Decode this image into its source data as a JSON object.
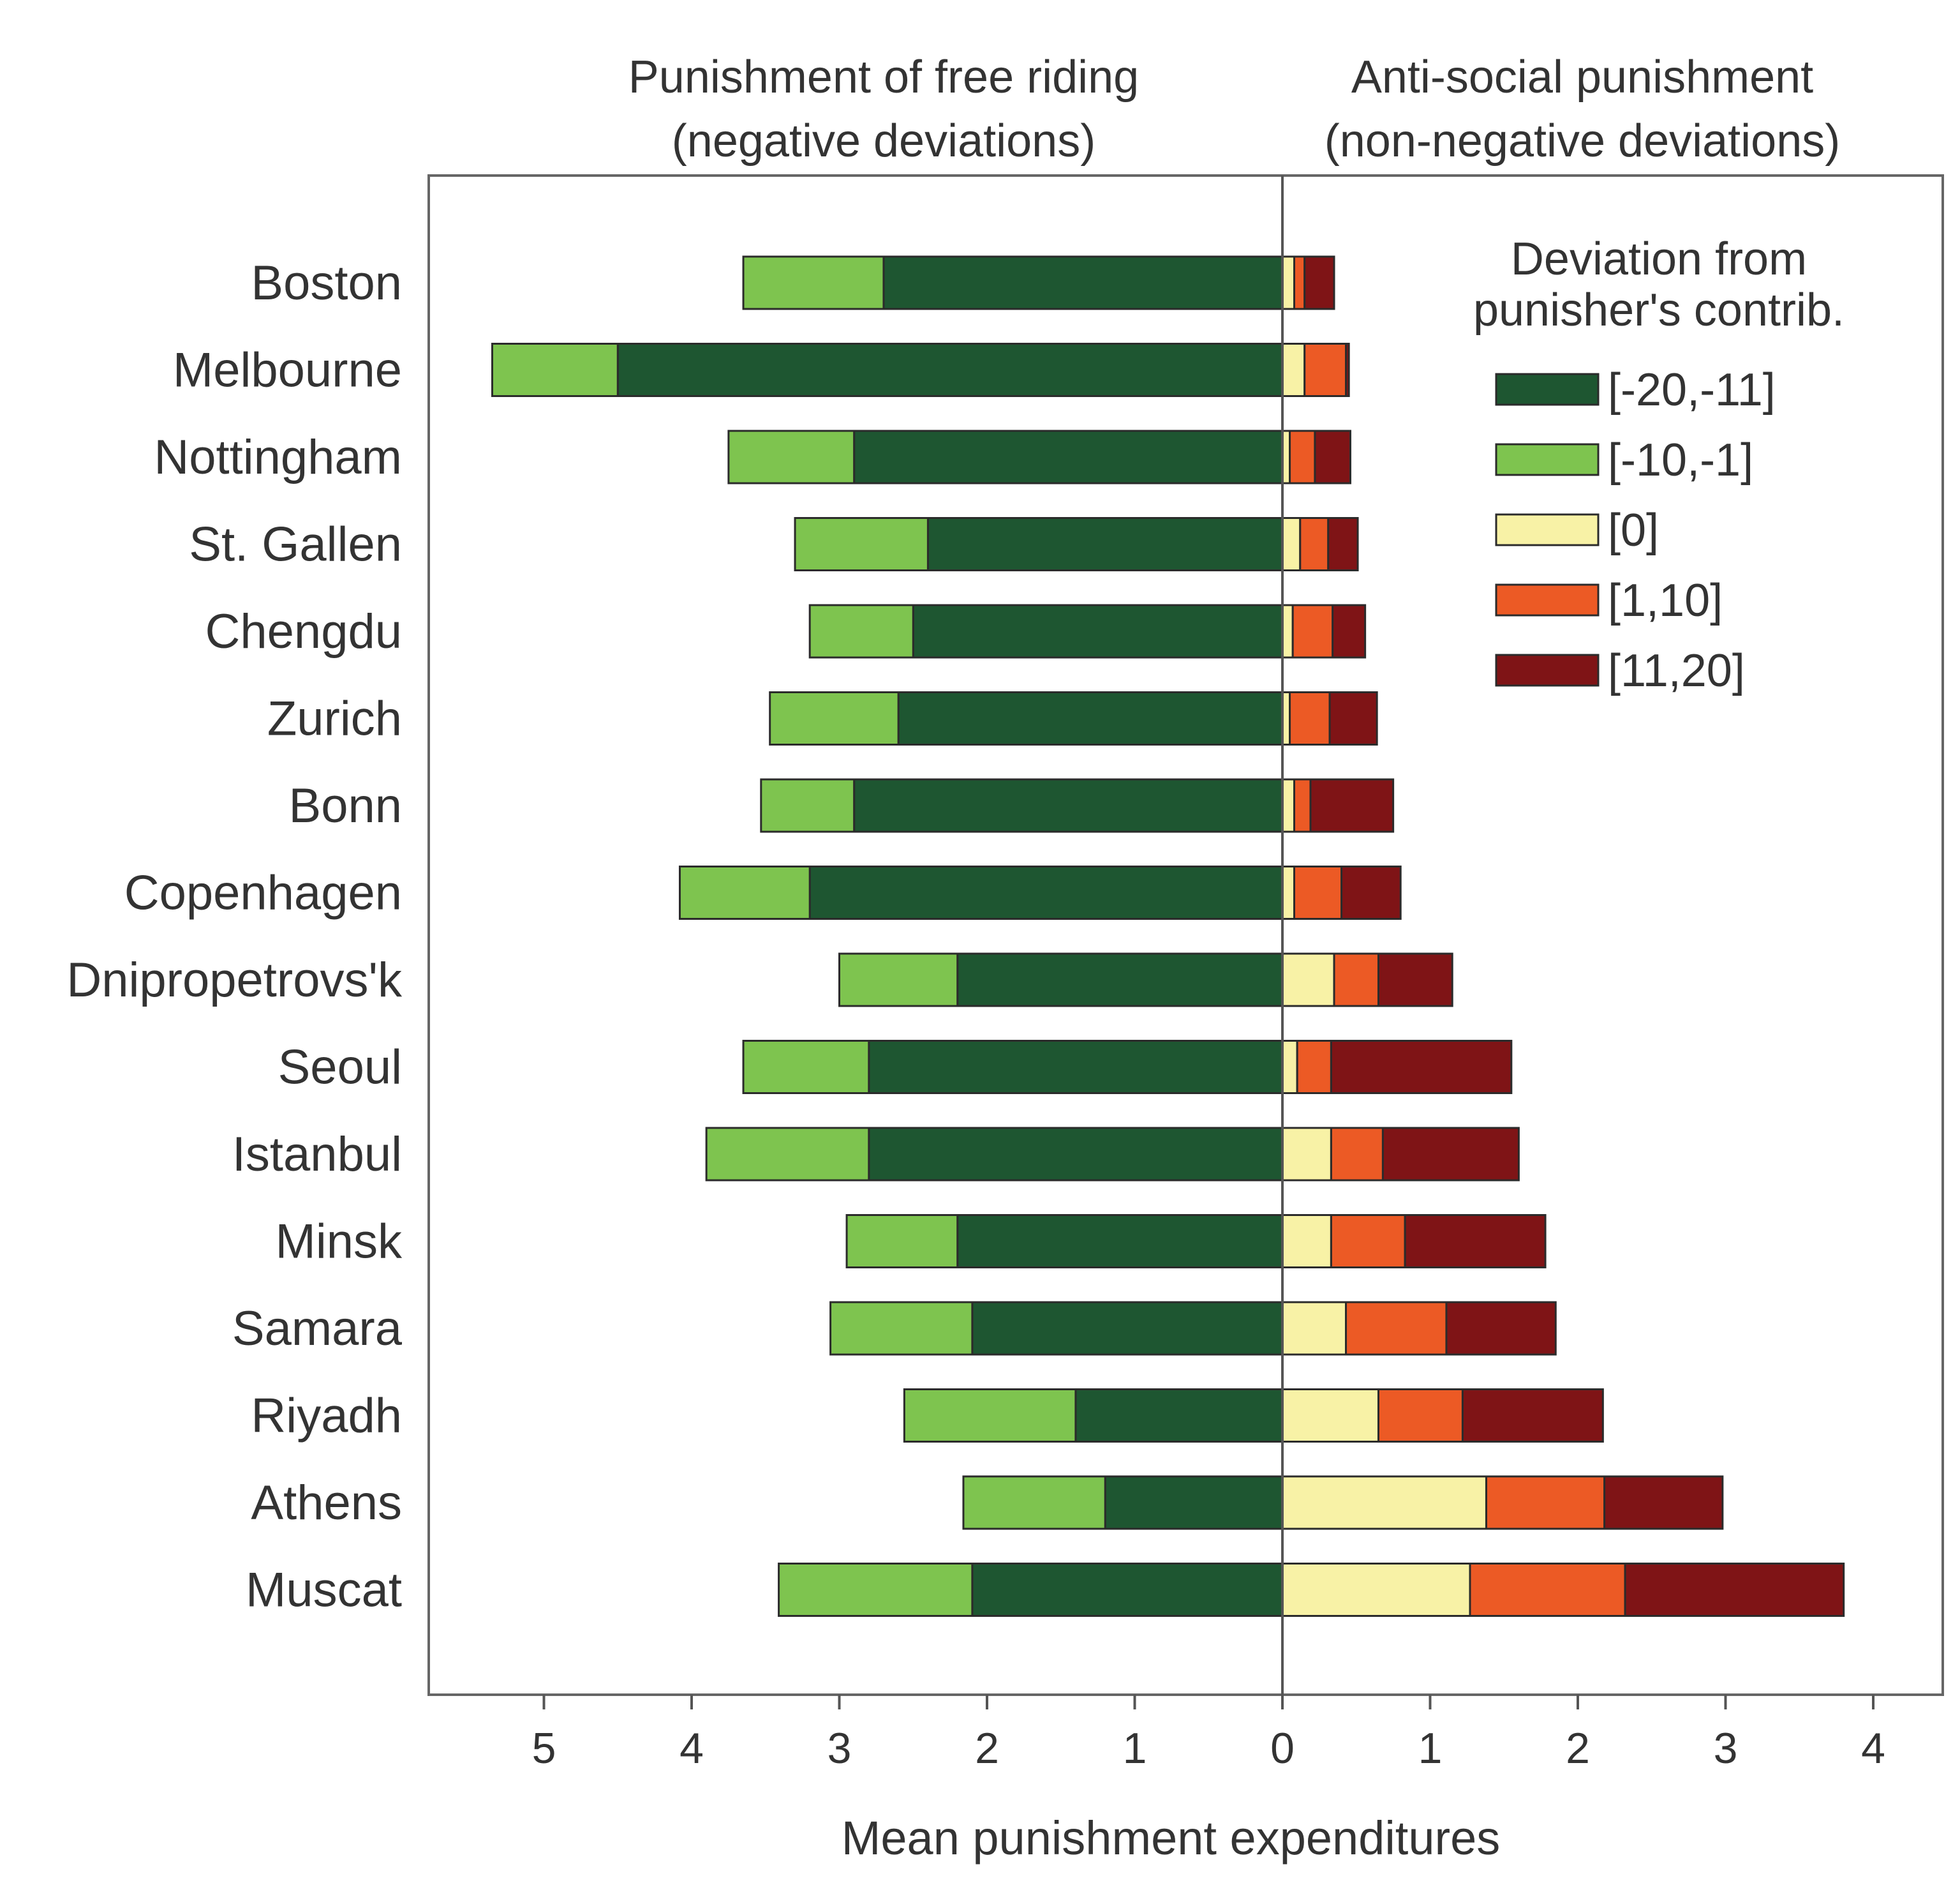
{
  "chart_data": {
    "type": "bar",
    "orientation": "horizontal-diverging-stacked",
    "section_titles": {
      "left": [
        "Punishment of free riding",
        "(negative deviations)"
      ],
      "right": [
        "Anti-social punishment",
        "(non-negative deviations)"
      ]
    },
    "xlabel": "Mean punishment expenditures",
    "xlim": [
      -5.6,
      4.3
    ],
    "xticks": [
      -5,
      -4,
      -3,
      -2,
      -1,
      0,
      1,
      2,
      3,
      4
    ],
    "xtick_labels": [
      "5",
      "4",
      "3",
      "2",
      "1",
      "0",
      "1",
      "2",
      "3",
      "4"
    ],
    "legend": {
      "title": [
        "Deviation from",
        "punisher's contrib."
      ],
      "position": "top-right"
    },
    "categories": [
      "Boston",
      "Melbourne",
      "Nottingham",
      "St. Gallen",
      "Chengdu",
      "Zurich",
      "Bonn",
      "Copenhagen",
      "Dnipropetrovs'k",
      "Seoul",
      "Istanbul",
      "Minsk",
      "Samara",
      "Riyadh",
      "Athens",
      "Muscat"
    ],
    "series": [
      {
        "name": "[-20,-11]",
        "side": "left",
        "color": "#1e5631",
        "values": [
          2.7,
          4.5,
          2.9,
          2.4,
          2.5,
          2.6,
          2.9,
          3.2,
          2.2,
          2.8,
          2.8,
          2.2,
          2.1,
          1.4,
          1.2,
          2.1
        ]
      },
      {
        "name": "[-10,-1]",
        "side": "left",
        "color": "#7ec44f",
        "values": [
          0.95,
          0.85,
          0.85,
          0.9,
          0.7,
          0.87,
          0.63,
          0.88,
          0.8,
          0.85,
          1.1,
          0.75,
          0.96,
          1.16,
          0.96,
          1.31
        ]
      },
      {
        "name": "[0]",
        "side": "right",
        "color": "#f8f2a6",
        "values": [
          0.08,
          0.15,
          0.05,
          0.12,
          0.07,
          0.05,
          0.08,
          0.08,
          0.35,
          0.1,
          0.33,
          0.33,
          0.43,
          0.65,
          1.38,
          1.27
        ]
      },
      {
        "name": "[1,10]",
        "side": "right",
        "color": "#ec5a25",
        "values": [
          0.07,
          0.28,
          0.17,
          0.19,
          0.27,
          0.27,
          0.11,
          0.32,
          0.3,
          0.23,
          0.35,
          0.5,
          0.68,
          0.57,
          0.8,
          1.05
        ]
      },
      {
        "name": "[11,20]",
        "side": "right",
        "color": "#7f1416",
        "values": [
          0.2,
          0.02,
          0.24,
          0.2,
          0.22,
          0.32,
          0.56,
          0.4,
          0.5,
          1.22,
          0.92,
          0.95,
          0.74,
          0.95,
          0.8,
          1.48
        ]
      }
    ]
  }
}
